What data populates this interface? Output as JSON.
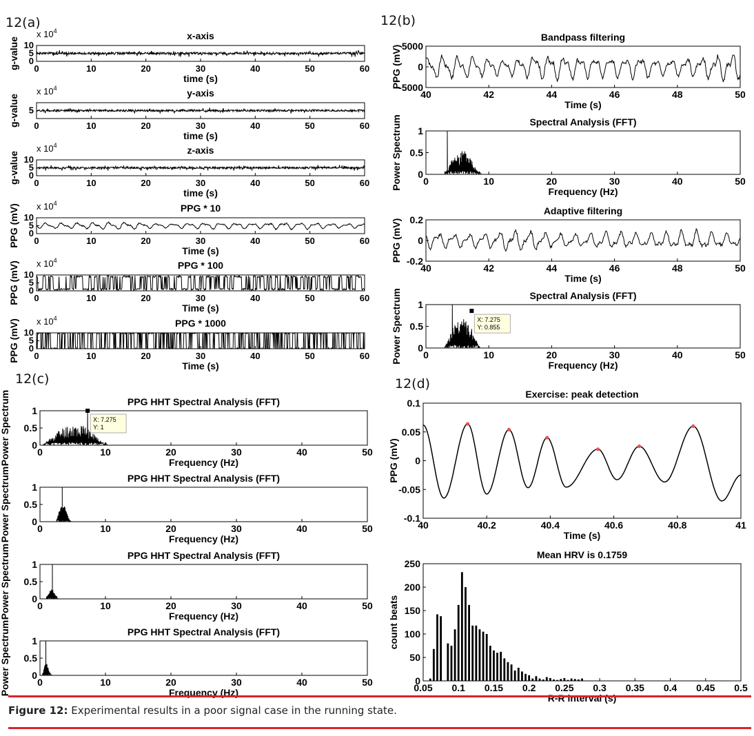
{
  "caption": {
    "label": "Figure 12:",
    "text": "Experimental results in a poor signal case in the running state.",
    "rule_color": "#d9232a"
  },
  "panels": {
    "a": "12(a)",
    "b": "12(b)",
    "c": "12(c)",
    "d": "12(d)"
  },
  "chart_data": [
    {
      "id": "a1",
      "panel": "12(a)",
      "type": "line",
      "title": "x-axis",
      "xlabel": "time (s)",
      "ylabel": "g-value",
      "y_exponent": "x 10^4",
      "xlim": [
        0,
        60
      ],
      "ylim": [
        0,
        10
      ],
      "xticks": [
        0,
        10,
        20,
        30,
        40,
        50,
        60
      ],
      "yticks": [
        0,
        5,
        10
      ],
      "series": [
        {
          "kind": "noise",
          "mean": 5,
          "amplitude": 1.2,
          "npts": 900,
          "seed": 1
        }
      ]
    },
    {
      "id": "a2",
      "panel": "12(a)",
      "type": "line",
      "title": "y-axis",
      "xlabel": "time (s)",
      "ylabel": "g-value",
      "y_exponent": "x 10^4",
      "xlim": [
        0,
        60
      ],
      "ylim": [
        0,
        10
      ],
      "xticks": [
        0,
        10,
        20,
        30,
        40,
        50,
        60
      ],
      "yticks": [
        5
      ],
      "series": [
        {
          "kind": "noise",
          "mean": 5,
          "amplitude": 1.0,
          "npts": 900,
          "seed": 2
        }
      ]
    },
    {
      "id": "a3",
      "panel": "12(a)",
      "type": "line",
      "title": "z-axis",
      "xlabel": "time (s)",
      "ylabel": "g-value",
      "y_exponent": "x 10^4",
      "xlim": [
        0,
        60
      ],
      "ylim": [
        0,
        10
      ],
      "xticks": [
        0,
        10,
        20,
        30,
        40,
        50,
        60
      ],
      "yticks": [
        0,
        5,
        10
      ],
      "series": [
        {
          "kind": "noise",
          "mean": 5,
          "amplitude": 1.0,
          "npts": 900,
          "seed": 3
        }
      ]
    },
    {
      "id": "a4",
      "panel": "12(a)",
      "type": "line",
      "title": "PPG * 10",
      "xlabel": "Time (s)",
      "ylabel": "PPG (mV)",
      "y_exponent": "x 10^4",
      "xlim": [
        0,
        60
      ],
      "ylim": [
        0,
        10
      ],
      "xticks": [
        0,
        10,
        20,
        30,
        40,
        50,
        60
      ],
      "yticks": [
        0,
        5,
        10
      ],
      "series": [
        {
          "kind": "wave",
          "mean": 5,
          "amplitude": 2.2,
          "npts": 700,
          "seed": 4
        }
      ]
    },
    {
      "id": "a5",
      "panel": "12(a)",
      "type": "line",
      "title": "PPG * 100",
      "xlabel": "Time (s)",
      "ylabel": "PPG (mV)",
      "y_exponent": "x 10^4",
      "xlim": [
        0,
        60
      ],
      "ylim": [
        0,
        10
      ],
      "xticks": [
        0,
        10,
        20,
        30,
        40,
        50,
        60
      ],
      "yticks": [
        0,
        5,
        10
      ],
      "series": [
        {
          "kind": "square",
          "low": 1,
          "high": 9,
          "npts": 700,
          "seed": 5
        }
      ]
    },
    {
      "id": "a6",
      "panel": "12(a)",
      "type": "line",
      "title": "PPG * 1000",
      "xlabel": "Time (s)",
      "ylabel": "PPG (mV)",
      "y_exponent": "x 10^4",
      "xlim": [
        0,
        60
      ],
      "ylim": [
        0,
        10
      ],
      "xticks": [
        0,
        10,
        20,
        30,
        40,
        50,
        60
      ],
      "yticks": [
        0,
        5,
        10
      ],
      "series": [
        {
          "kind": "square",
          "low": 0,
          "high": 10,
          "npts": 900,
          "seed": 6
        }
      ]
    },
    {
      "id": "b1",
      "panel": "12(b)",
      "type": "line",
      "title": "Bandpass filtering",
      "xlabel": "Time (s)",
      "ylabel": "PPG (mV)",
      "xlim": [
        40,
        50
      ],
      "ylim": [
        -5000,
        5000
      ],
      "xticks": [
        40,
        42,
        44,
        46,
        48,
        50
      ],
      "yticks": [
        -5000,
        0,
        5000
      ],
      "series": [
        {
          "kind": "wave",
          "mean": 0,
          "amplitude": 3000,
          "npts": 500,
          "seed": 7
        }
      ]
    },
    {
      "id": "b2",
      "panel": "12(b)",
      "type": "line",
      "title": "Spectral Analysis (FFT)",
      "xlabel": "Frequency (Hz)",
      "ylabel": "Power Spectrum",
      "xlim": [
        0,
        50
      ],
      "ylim": [
        0,
        1
      ],
      "xticks": [
        0,
        10,
        20,
        30,
        40,
        50
      ],
      "yticks": [
        0,
        0.5,
        1
      ],
      "series": [
        {
          "kind": "spectrum",
          "start": 3,
          "end": 8.5,
          "peak_x": 3.4,
          "peak_y": 1,
          "level": 0.4,
          "seed": 8
        }
      ]
    },
    {
      "id": "b3",
      "panel": "12(b)",
      "type": "line",
      "title": "Adaptive filtering",
      "xlabel": "Time (s)",
      "ylabel": "PPG (mV)",
      "xlim": [
        40,
        50
      ],
      "ylim": [
        -0.2,
        0.2
      ],
      "xticks": [
        40,
        42,
        44,
        46,
        48,
        50
      ],
      "yticks": [
        -0.2,
        0,
        0.2
      ],
      "series": [
        {
          "kind": "wave",
          "mean": 0,
          "amplitude": 0.09,
          "npts": 500,
          "seed": 9
        }
      ]
    },
    {
      "id": "b4",
      "panel": "12(b)",
      "type": "line",
      "title": "Spectral Analysis (FFT)",
      "xlabel": "Frequency (Hz)",
      "ylabel": "Power Spectrum",
      "xlim": [
        0,
        50
      ],
      "ylim": [
        0,
        1
      ],
      "xticks": [
        0,
        10,
        20,
        30,
        40,
        50
      ],
      "yticks": [
        0,
        0.5,
        1
      ],
      "series": [
        {
          "kind": "spectrum",
          "start": 3,
          "end": 8.5,
          "peak_x": 4.2,
          "peak_y": 1,
          "level": 0.5,
          "seed": 10
        }
      ],
      "datatip": {
        "x": 7.275,
        "y": 0.855,
        "line1": "X: 7.275",
        "line2": "Y: 0.855"
      }
    },
    {
      "id": "c1",
      "panel": "12(c)",
      "type": "line",
      "title": "PPG HHT Spectral Analysis (FFT)",
      "xlabel": "Frequency (Hz)",
      "ylabel": "Power Spectrum",
      "xlim": [
        0,
        50
      ],
      "ylim": [
        0,
        1
      ],
      "xticks": [
        0,
        10,
        20,
        30,
        40,
        50
      ],
      "yticks": [
        0,
        0.5,
        1
      ],
      "series": [
        {
          "kind": "spectrum",
          "start": 0.5,
          "end": 10,
          "peak_x": 7.275,
          "peak_y": 1,
          "level": 0.45,
          "seed": 11
        }
      ],
      "datatip": {
        "x": 7.275,
        "y": 1,
        "line1": "X: 7.275",
        "line2": "Y: 1"
      }
    },
    {
      "id": "c2",
      "panel": "12(c)",
      "type": "line",
      "title": "PPG HHT Spectral Analysis (FFT)",
      "xlabel": "Frequency (Hz)",
      "ylabel": "Power Spectrum",
      "xlim": [
        0,
        50
      ],
      "ylim": [
        0,
        1
      ],
      "xticks": [
        0,
        10,
        20,
        30,
        40,
        50
      ],
      "yticks": [
        0,
        0.5,
        1
      ],
      "series": [
        {
          "kind": "spectrum",
          "start": 2.5,
          "end": 4.5,
          "peak_x": 3.4,
          "peak_y": 1,
          "level": 0.35,
          "seed": 12
        }
      ]
    },
    {
      "id": "c3",
      "panel": "12(c)",
      "type": "line",
      "title": "PPG HHT Spectral Analysis (FFT)",
      "xlabel": "Frequency (Hz)",
      "ylabel": "Power Spectrum",
      "xlim": [
        0,
        50
      ],
      "ylim": [
        0,
        1
      ],
      "xticks": [
        0,
        10,
        20,
        30,
        40,
        50
      ],
      "yticks": [
        0,
        0.5,
        1
      ],
      "series": [
        {
          "kind": "spectrum",
          "start": 1,
          "end": 2.6,
          "peak_x": 1.9,
          "peak_y": 1,
          "level": 0.2,
          "seed": 13
        }
      ]
    },
    {
      "id": "c4",
      "panel": "12(c)",
      "type": "line",
      "title": "PPG HHT Spectral Analysis (FFT)",
      "xlabel": "Frequency (Hz)",
      "ylabel": "Power Spectrum",
      "xlim": [
        0,
        50
      ],
      "ylim": [
        0,
        1
      ],
      "xticks": [
        0,
        10,
        20,
        30,
        40,
        50
      ],
      "yticks": [
        0,
        0.5,
        1
      ],
      "series": [
        {
          "kind": "spectrum",
          "start": 0.4,
          "end": 1.5,
          "peak_x": 0.9,
          "peak_y": 1,
          "level": 0.25,
          "seed": 14
        }
      ]
    },
    {
      "id": "d1",
      "panel": "12(d)",
      "type": "line",
      "title": "Exercise: peak detection",
      "xlabel": "Time (s)",
      "ylabel": "PPG (mV)",
      "xlim": [
        40,
        41
      ],
      "ylim": [
        -0.1,
        0.1
      ],
      "xticks": [
        40,
        40.2,
        40.4,
        40.6,
        40.8,
        41
      ],
      "yticks": [
        -0.1,
        -0.05,
        0,
        0.05,
        0.1
      ],
      "series": [
        {
          "kind": "extrema",
          "points": [
            [
              40.0,
              0.062
            ],
            [
              40.065,
              -0.065
            ],
            [
              40.14,
              0.064
            ],
            [
              40.2,
              -0.058
            ],
            [
              40.27,
              0.054
            ],
            [
              40.33,
              -0.047
            ],
            [
              40.39,
              0.04
            ],
            [
              40.45,
              -0.046
            ],
            [
              40.55,
              0.02
            ],
            [
              40.61,
              -0.033
            ],
            [
              40.68,
              0.025
            ],
            [
              40.76,
              -0.037
            ],
            [
              40.85,
              0.06
            ],
            [
              40.94,
              -0.07
            ],
            [
              41.0,
              -0.025
            ]
          ]
        }
      ],
      "peaks": [
        [
          40.14,
          0.064
        ],
        [
          40.27,
          0.054
        ],
        [
          40.39,
          0.04
        ],
        [
          40.55,
          0.02
        ],
        [
          40.68,
          0.025
        ],
        [
          40.85,
          0.06
        ]
      ],
      "peak_color": "#e25555"
    },
    {
      "id": "d2",
      "panel": "12(d)",
      "type": "bar",
      "title": "Mean HRV is 0.1759",
      "xlabel": "R-R interval (s)",
      "ylabel": "count beats",
      "xlim": [
        0.05,
        0.5
      ],
      "ylim": [
        0,
        250
      ],
      "xticks": [
        0.05,
        0.1,
        0.15,
        0.2,
        0.25,
        0.3,
        0.35,
        0.4,
        0.45,
        0.5
      ],
      "yticks": [
        0,
        50,
        100,
        150,
        200,
        250
      ],
      "bar_centers_start": 0.06,
      "bar_step": 0.005,
      "values": [
        5,
        68,
        142,
        138,
        0,
        80,
        75,
        110,
        162,
        232,
        200,
        162,
        118,
        118,
        110,
        105,
        100,
        75,
        65,
        60,
        62,
        48,
        40,
        35,
        22,
        28,
        20,
        15,
        12,
        5,
        10,
        5,
        3,
        8,
        6,
        3,
        2,
        4,
        6,
        2,
        5,
        4,
        3,
        5
      ]
    }
  ]
}
